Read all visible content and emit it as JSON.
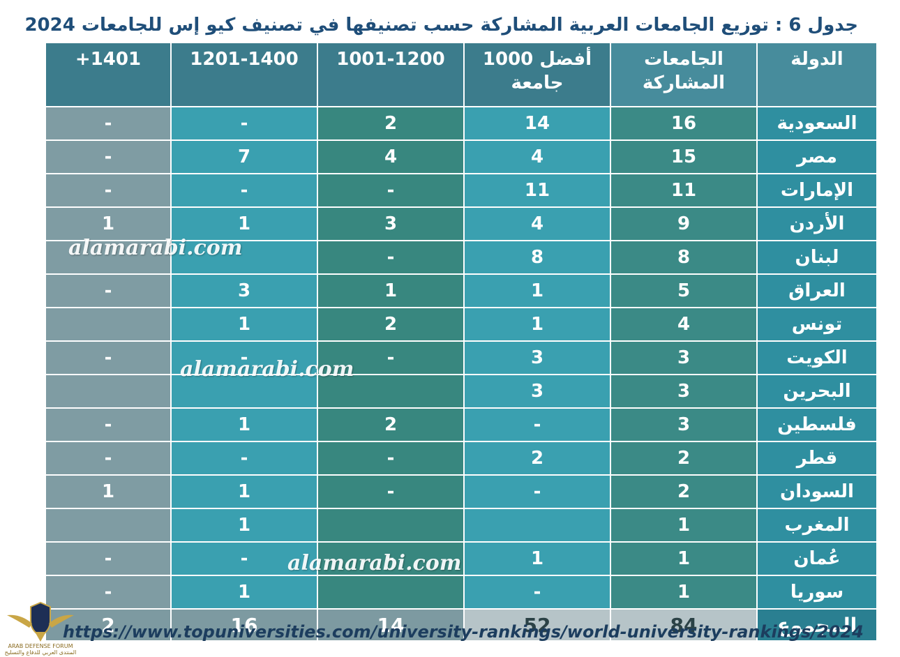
{
  "title": "جدول 6 :  توزيع الجامعات العربية المشاركة حسب تصنيفها في تصنيف كيو إس للجامعات 2024",
  "headers": {
    "country": "الدولة",
    "participating": "الجامعات المشاركة",
    "top1000": "أفضل 1000 جامعة",
    "r1001": "1001-1200",
    "r1201": "1201-1400",
    "r1401": "1401+"
  },
  "rows": [
    {
      "country": "السعودية",
      "participating": "16",
      "top1000": "14",
      "r1001": "2",
      "r1201": "-",
      "r1401": "-"
    },
    {
      "country": "مصر",
      "participating": "15",
      "top1000": "4",
      "r1001": "4",
      "r1201": "7",
      "r1401": "-"
    },
    {
      "country": "الإمارات",
      "participating": "11",
      "top1000": "11",
      "r1001": "-",
      "r1201": "-",
      "r1401": "-"
    },
    {
      "country": "الأردن",
      "participating": "9",
      "top1000": "4",
      "r1001": "3",
      "r1201": "1",
      "r1401": "1"
    },
    {
      "country": "لبنان",
      "participating": "8",
      "top1000": "8",
      "r1001": "-",
      "r1201": "",
      "r1401": ""
    },
    {
      "country": "العراق",
      "participating": "5",
      "top1000": "1",
      "r1001": "1",
      "r1201": "3",
      "r1401": "-"
    },
    {
      "country": "تونس",
      "participating": "4",
      "top1000": "1",
      "r1001": "2",
      "r1201": "1",
      "r1401": ""
    },
    {
      "country": "الكويت",
      "participating": "3",
      "top1000": "3",
      "r1001": "-",
      "r1201": "-",
      "r1401": "-"
    },
    {
      "country": "البحرين",
      "participating": "3",
      "top1000": "3",
      "r1001": "",
      "r1201": "",
      "r1401": ""
    },
    {
      "country": "فلسطين",
      "participating": "3",
      "top1000": "-",
      "r1001": "2",
      "r1201": "1",
      "r1401": "-"
    },
    {
      "country": "قطر",
      "participating": "2",
      "top1000": "2",
      "r1001": "-",
      "r1201": "-",
      "r1401": "-"
    },
    {
      "country": "السودان",
      "participating": "2",
      "top1000": "-",
      "r1001": "-",
      "r1201": "1",
      "r1401": "1"
    },
    {
      "country": "المغرب",
      "participating": "1",
      "top1000": "",
      "r1001": "",
      "r1201": "1",
      "r1401": ""
    },
    {
      "country": "عُمان",
      "participating": "1",
      "top1000": "1",
      "r1001": "-",
      "r1201": "-",
      "r1401": "-"
    },
    {
      "country": "سوريا",
      "participating": "1",
      "top1000": "-",
      "r1001": "",
      "r1201": "1",
      "r1401": "-"
    }
  ],
  "total": {
    "country": "المجموع",
    "participating": "84",
    "top1000": "52",
    "r1001": "14",
    "r1201": "16",
    "r1401": "2"
  },
  "watermark": "alamarabi.com",
  "source_url": "https://www.topuniversities.com/university-rankings/world-university-rankings/2024",
  "logo": {
    "line1": "ARAB DEFENSE FORUM",
    "line2": "المنتدى العربي للدفاع والتسليح",
    "monogram": "DA"
  }
}
